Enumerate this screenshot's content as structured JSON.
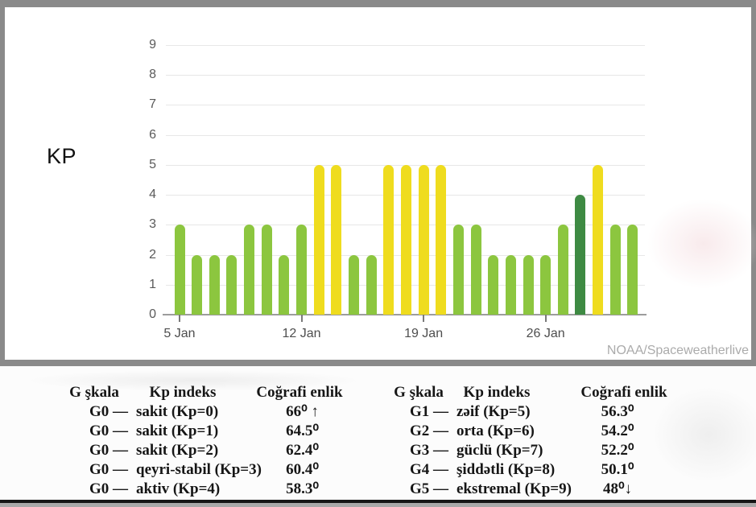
{
  "chart": {
    "kp_label": "KP",
    "watermark": "NOAA/Spaceweatherlive"
  },
  "chart_data": {
    "type": "bar",
    "title": "KP",
    "ylabel": "KP",
    "xlabel": "",
    "grid": true,
    "ylim": [
      0,
      9
    ],
    "y_ticks": [
      0,
      1,
      2,
      3,
      4,
      5,
      6,
      7,
      8,
      9
    ],
    "categories": [
      "5 Jan",
      "6 Jan",
      "7 Jan",
      "8 Jan",
      "9 Jan",
      "10 Jan",
      "11 Jan",
      "12 Jan",
      "13 Jan",
      "14 Jan",
      "15 Jan",
      "16 Jan",
      "17 Jan",
      "18 Jan",
      "19 Jan",
      "20 Jan",
      "21 Jan",
      "22 Jan",
      "23 Jan",
      "24 Jan",
      "25 Jan",
      "26 Jan",
      "27 Jan",
      "28 Jan",
      "29 Jan",
      "30 Jan",
      "31 Jan"
    ],
    "values": [
      3,
      2,
      2,
      2,
      3,
      3,
      2,
      3,
      5,
      5,
      2,
      2,
      5,
      5,
      5,
      5,
      3,
      3,
      2,
      2,
      2,
      2,
      3,
      4,
      5,
      3,
      3
    ],
    "x_tick_labels": [
      "5 Jan",
      "12 Jan",
      "19 Jan",
      "26 Jan"
    ],
    "x_tick_indices": [
      0,
      7,
      14,
      21
    ],
    "color_rule": "Kp<=3 light green, Kp=4 dark green, Kp>=5 yellow",
    "colors": {
      "kp_quiet": "#8CC63F",
      "kp_active": "#3E8A43",
      "kp_storm": "#EFDC1E",
      "gridline": "#e7e7e7",
      "axis": "#9c9c9c"
    }
  },
  "legend_tables": {
    "left": {
      "headers": [
        "G şkala",
        "Kp indeks",
        "Coğrafi enlik"
      ],
      "rows": [
        {
          "g_scale": "G0 —",
          "kp_desc": "sakit (Kp=0)",
          "latitude": "66⁰ ↑"
        },
        {
          "g_scale": "G0 —",
          "kp_desc": "sakit (Kp=1)",
          "latitude": "64.5⁰"
        },
        {
          "g_scale": "G0 —",
          "kp_desc": "sakit (Kp=2)",
          "latitude": "62.4⁰"
        },
        {
          "g_scale": "G0 —",
          "kp_desc": "qeyri-stabil (Kp=3)",
          "latitude": "60.4⁰"
        },
        {
          "g_scale": "G0 —",
          "kp_desc": "aktiv (Kp=4)",
          "latitude": "58.3⁰"
        }
      ]
    },
    "right": {
      "headers": [
        "G şkala",
        "Kp indeks",
        "Coğrafi enlik"
      ],
      "rows": [
        {
          "g_scale": "G1 —",
          "kp_desc": "zəif (Kp=5)",
          "latitude": "56.3⁰"
        },
        {
          "g_scale": "G2 —",
          "kp_desc": "orta (Kp=6)",
          "latitude": "54.2⁰"
        },
        {
          "g_scale": "G3 —",
          "kp_desc": "güclü (Kp=7)",
          "latitude": "52.2⁰"
        },
        {
          "g_scale": "G4 —",
          "kp_desc": "şiddətli (Kp=8)",
          "latitude": "50.1⁰"
        },
        {
          "g_scale": "G5 —",
          "kp_desc": "ekstremal (Kp=9)",
          "latitude": "48⁰↓"
        }
      ]
    }
  }
}
